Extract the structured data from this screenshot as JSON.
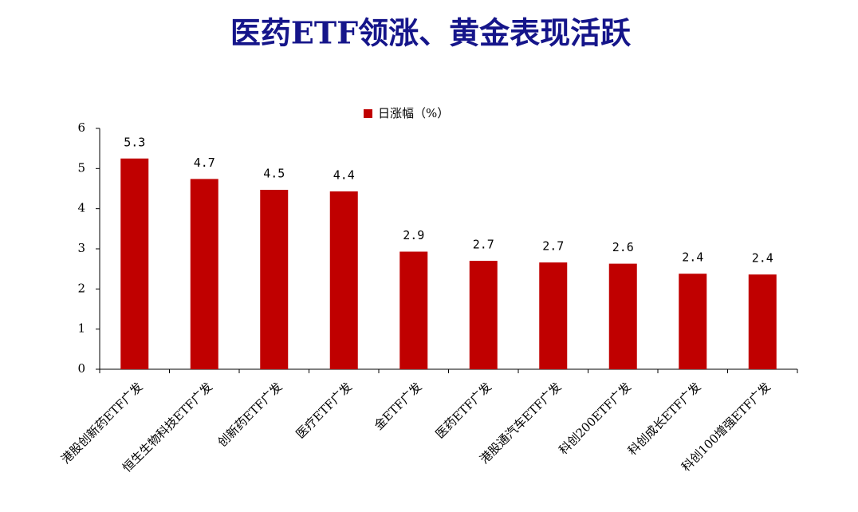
{
  "chart_data": {
    "type": "bar",
    "title": "医药ETF领涨、黄金表现活跃",
    "categories": [
      "港股创新药ETF广发",
      "恒生生物科技ETF广发",
      "创新药ETF广发",
      "医疗ETF广发",
      "金ETF广发",
      "医药ETF广发",
      "港股通汽车ETF广发",
      "科创200ETF广发",
      "科创成长ETF广发",
      "科创100增强ETF广发"
    ],
    "series": [
      {
        "name": "日涨幅（%）",
        "color": "#c00000",
        "values": [
          5.25,
          4.74,
          4.47,
          4.43,
          2.93,
          2.7,
          2.66,
          2.63,
          2.38,
          2.36
        ],
        "value_labels": [
          "5.3",
          "4.7",
          "4.5",
          "4.4",
          "2.9",
          "2.7",
          "2.7",
          "2.6",
          "2.4",
          "2.4"
        ]
      }
    ],
    "ylim": [
      0,
      6
    ],
    "yticks": [
      0,
      1,
      2,
      3,
      4,
      5,
      6
    ],
    "grid": false
  }
}
